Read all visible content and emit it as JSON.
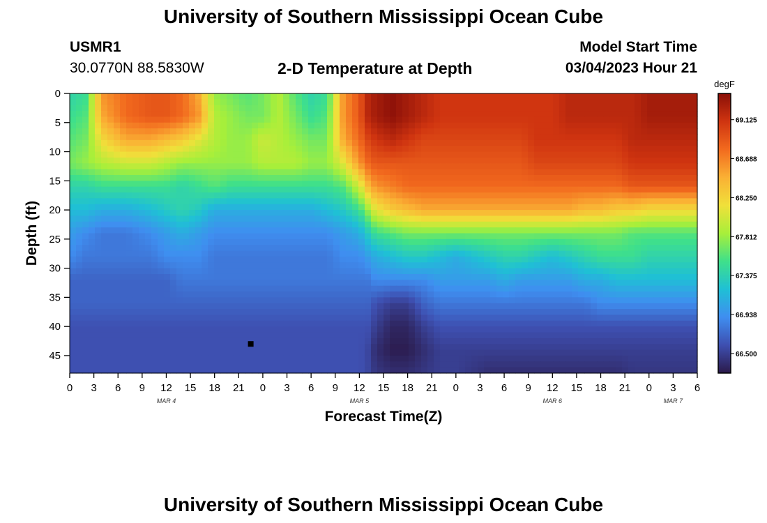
{
  "page": {
    "title": "University of Southern Mississippi Ocean Cube",
    "footer_title": "University of Southern Mississippi Ocean Cube",
    "station_id": "USMR1",
    "coordinates": "30.0770N  88.5830W",
    "subtitle": "2-D Temperature at Depth",
    "model_start_label": "Model Start Time",
    "model_start_value": "03/04/2023 Hour 21"
  },
  "chart_data": {
    "type": "heatmap",
    "title": "2-D Temperature at Depth",
    "xlabel": "Forecast Time(Z)",
    "ylabel": "Depth (ft)",
    "x_range_hours": [
      0,
      78
    ],
    "y_range_ft": [
      0,
      48
    ],
    "x_tick_hours": [
      0,
      3,
      6,
      9,
      12,
      15,
      18,
      21,
      24,
      27,
      30,
      33,
      36,
      39,
      42,
      45,
      48,
      51,
      54,
      57,
      60,
      63,
      66,
      69,
      72,
      75,
      78
    ],
    "x_tick_labels": [
      "0",
      "3",
      "6",
      "9",
      "12",
      "15",
      "18",
      "21",
      "0",
      "3",
      "6",
      "9",
      "12",
      "15",
      "18",
      "21",
      "0",
      "3",
      "6",
      "9",
      "12",
      "15",
      "18",
      "21",
      "0",
      "3",
      "6"
    ],
    "y_ticks": [
      0,
      5,
      10,
      15,
      20,
      25,
      30,
      35,
      40,
      45
    ],
    "y_tick_labels": [
      "0",
      "5",
      "10",
      "15",
      "20",
      "25",
      "30",
      "35",
      "40",
      "45"
    ],
    "date_labels": [
      {
        "label": "MAR 4",
        "hour": 12
      },
      {
        "label": "MAR 5",
        "hour": 36
      },
      {
        "label": "MAR 6",
        "hour": 60
      },
      {
        "label": "MAR 7",
        "hour": 75
      }
    ],
    "colorbar": {
      "unit": "degF",
      "min": 66.28,
      "max": 69.42,
      "tick_values": [
        69.125,
        68.688,
        68.25,
        67.812,
        67.375,
        66.938,
        66.5
      ],
      "tick_labels": [
        "69.125",
        "68.688",
        "68.250",
        "67.812",
        "67.375",
        "66.938",
        "66.500"
      ],
      "color_stops": [
        "#2b1a4a",
        "#3e4fb0",
        "#3f8ef0",
        "#1fc0d5",
        "#3fe08a",
        "#a8ef3a",
        "#f0e03a",
        "#fab034",
        "#f26a1e",
        "#cf3410",
        "#8a0f08"
      ]
    },
    "marker": {
      "hour": 22.5,
      "depth": 43
    },
    "grid_times": [
      0,
      2,
      4,
      7,
      10,
      12,
      14,
      16,
      18,
      20,
      22,
      24,
      26,
      28,
      30,
      32,
      34,
      36,
      37,
      38,
      40,
      42,
      44,
      46,
      48,
      50,
      52,
      54,
      56,
      58,
      60,
      62,
      64,
      66,
      68,
      70,
      72,
      74,
      76,
      78
    ],
    "grid_depths": [
      0,
      4,
      8,
      12,
      16,
      20,
      24,
      28,
      32,
      36,
      40,
      44,
      48
    ],
    "temperature_grid": [
      [
        67.4,
        67.5,
        68.6,
        68.8,
        68.9,
        68.9,
        68.8,
        68.5,
        67.8,
        67.7,
        67.6,
        67.7,
        67.9,
        67.6,
        67.4,
        67.5,
        68.6,
        68.9,
        69.2,
        69.3,
        69.4,
        69.3,
        69.2,
        69.1,
        69.1,
        69.1,
        69.1,
        69.1,
        69.1,
        69.1,
        69.1,
        69.2,
        69.2,
        69.2,
        69.2,
        69.2,
        69.3,
        69.3,
        69.3,
        69.3
      ],
      [
        67.5,
        67.6,
        68.5,
        68.8,
        68.9,
        68.9,
        68.8,
        68.6,
        67.9,
        67.8,
        67.7,
        67.7,
        67.9,
        67.7,
        67.5,
        67.6,
        68.6,
        68.9,
        69.2,
        69.3,
        69.4,
        69.3,
        69.2,
        69.1,
        69.1,
        69.1,
        69.1,
        69.1,
        69.1,
        69.1,
        69.1,
        69.2,
        69.2,
        69.2,
        69.2,
        69.2,
        69.3,
        69.3,
        69.3,
        69.3
      ],
      [
        67.6,
        67.7,
        68.2,
        68.5,
        68.5,
        68.4,
        68.3,
        68.1,
        67.9,
        67.8,
        67.8,
        68.0,
        67.9,
        67.8,
        67.7,
        67.7,
        68.5,
        68.8,
        69.0,
        69.1,
        69.2,
        69.1,
        69.0,
        69.0,
        69.0,
        69.0,
        69.0,
        69.0,
        69.0,
        69.1,
        69.1,
        69.1,
        69.1,
        69.1,
        69.1,
        69.2,
        69.2,
        69.2,
        69.2,
        69.2
      ],
      [
        67.7,
        67.8,
        67.9,
        68.0,
        68.0,
        67.9,
        67.8,
        67.8,
        67.8,
        67.8,
        67.8,
        67.9,
        67.9,
        67.9,
        67.8,
        67.8,
        68.1,
        68.6,
        68.8,
        68.9,
        68.9,
        68.9,
        68.9,
        68.9,
        68.9,
        68.9,
        68.9,
        68.9,
        68.9,
        69.0,
        69.0,
        69.0,
        69.0,
        69.0,
        69.0,
        69.1,
        69.1,
        69.1,
        69.1,
        69.1
      ],
      [
        67.4,
        67.4,
        67.5,
        67.5,
        67.5,
        67.5,
        67.4,
        67.5,
        67.6,
        67.5,
        67.5,
        67.5,
        67.5,
        67.5,
        67.5,
        67.5,
        67.6,
        68.0,
        68.4,
        68.6,
        68.7,
        68.8,
        68.8,
        68.8,
        68.8,
        68.8,
        68.8,
        68.8,
        68.8,
        68.8,
        68.8,
        68.8,
        68.8,
        68.8,
        68.8,
        68.9,
        68.9,
        68.9,
        68.9,
        68.9
      ],
      [
        67.2,
        67.2,
        67.1,
        67.1,
        67.2,
        67.3,
        67.4,
        67.3,
        67.1,
        67.1,
        67.1,
        67.1,
        67.1,
        67.1,
        67.1,
        67.2,
        67.3,
        67.5,
        67.8,
        68.1,
        68.3,
        68.4,
        68.5,
        68.5,
        68.5,
        68.5,
        68.5,
        68.5,
        68.5,
        68.5,
        68.5,
        68.5,
        68.4,
        68.4,
        68.3,
        68.3,
        68.2,
        68.2,
        68.2,
        68.2
      ],
      [
        67.0,
        66.9,
        66.8,
        66.8,
        66.9,
        67.0,
        67.1,
        67.0,
        66.9,
        66.9,
        66.9,
        66.9,
        66.9,
        66.9,
        66.9,
        66.9,
        67.0,
        67.1,
        67.3,
        67.5,
        67.6,
        67.7,
        67.7,
        67.7,
        67.7,
        67.7,
        67.7,
        67.7,
        67.7,
        67.7,
        67.7,
        67.7,
        67.7,
        67.7,
        67.7,
        67.6,
        67.6,
        67.6,
        67.6,
        67.6
      ],
      [
        66.9,
        66.8,
        66.8,
        66.8,
        66.8,
        66.9,
        66.9,
        66.9,
        66.8,
        66.8,
        66.8,
        66.8,
        66.8,
        66.8,
        66.8,
        66.8,
        66.9,
        66.9,
        67.0,
        67.1,
        67.2,
        67.3,
        67.3,
        67.2,
        67.1,
        67.2,
        67.3,
        67.4,
        67.4,
        67.3,
        67.2,
        67.3,
        67.4,
        67.5,
        67.5,
        67.5,
        67.4,
        67.4,
        67.4,
        67.4
      ],
      [
        66.7,
        66.7,
        66.7,
        66.7,
        66.7,
        66.7,
        66.8,
        66.8,
        66.8,
        66.8,
        66.8,
        66.8,
        66.8,
        66.8,
        66.8,
        66.8,
        66.8,
        66.8,
        66.8,
        66.9,
        66.9,
        66.9,
        66.9,
        67.0,
        67.0,
        67.0,
        67.0,
        67.1,
        67.0,
        67.0,
        67.0,
        67.0,
        67.1,
        67.1,
        67.2,
        67.2,
        67.2,
        67.2,
        67.2,
        67.2
      ],
      [
        66.7,
        66.7,
        66.7,
        66.7,
        66.7,
        66.7,
        66.7,
        66.7,
        66.7,
        66.7,
        66.7,
        66.7,
        66.7,
        66.7,
        66.7,
        66.7,
        66.7,
        66.7,
        66.7,
        66.6,
        66.5,
        66.5,
        66.7,
        66.8,
        66.8,
        66.8,
        66.8,
        66.8,
        66.8,
        66.8,
        66.8,
        66.8,
        66.8,
        66.9,
        66.9,
        66.9,
        66.9,
        66.9,
        66.9,
        66.9
      ],
      [
        66.6,
        66.6,
        66.6,
        66.6,
        66.6,
        66.6,
        66.6,
        66.6,
        66.6,
        66.6,
        66.6,
        66.6,
        66.6,
        66.6,
        66.6,
        66.6,
        66.6,
        66.6,
        66.6,
        66.5,
        66.35,
        66.35,
        66.5,
        66.6,
        66.6,
        66.6,
        66.6,
        66.6,
        66.6,
        66.6,
        66.6,
        66.6,
        66.6,
        66.6,
        66.6,
        66.6,
        66.6,
        66.6,
        66.6,
        66.6
      ],
      [
        66.6,
        66.6,
        66.6,
        66.6,
        66.6,
        66.6,
        66.6,
        66.6,
        66.6,
        66.6,
        66.6,
        66.6,
        66.6,
        66.6,
        66.6,
        66.6,
        66.6,
        66.6,
        66.55,
        66.4,
        66.3,
        66.3,
        66.4,
        66.5,
        66.5,
        66.5,
        66.5,
        66.5,
        66.5,
        66.5,
        66.5,
        66.5,
        66.5,
        66.5,
        66.5,
        66.5,
        66.5,
        66.5,
        66.5,
        66.5
      ],
      [
        66.6,
        66.6,
        66.6,
        66.6,
        66.6,
        66.6,
        66.6,
        66.6,
        66.6,
        66.6,
        66.6,
        66.6,
        66.6,
        66.6,
        66.6,
        66.6,
        66.6,
        66.6,
        66.55,
        66.45,
        66.4,
        66.4,
        66.45,
        66.5,
        66.5,
        66.45,
        66.4,
        66.4,
        66.4,
        66.4,
        66.4,
        66.4,
        66.4,
        66.4,
        66.4,
        66.45,
        66.45,
        66.45,
        66.45,
        66.45
      ]
    ]
  }
}
